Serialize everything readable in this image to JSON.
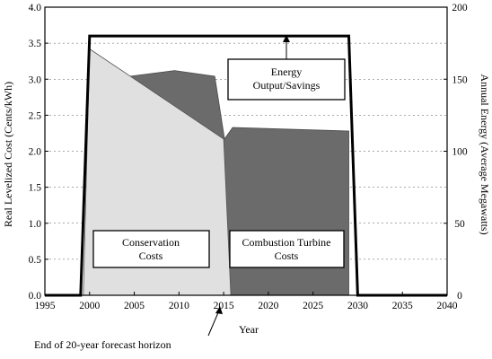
{
  "chart_data": {
    "type": "area",
    "xlabel": "Year",
    "ylabel_left": "Real Levelized Cost (Cents/kWh)",
    "ylabel_right": "Annual Energy (Average Megawatts)",
    "xlim": [
      1995,
      2040
    ],
    "ylim_left": [
      0,
      4.0
    ],
    "ylim_right": [
      0,
      200
    ],
    "x_ticks": [
      "1995",
      "2000",
      "2005",
      "2010",
      "2015",
      "2020",
      "2025",
      "2030",
      "2035",
      "2040"
    ],
    "y_ticks_left": [
      "0.0",
      "0.5",
      "1.0",
      "1.5",
      "2.0",
      "2.5",
      "3.0",
      "3.5",
      "4.0"
    ],
    "y_ticks_right": [
      "0",
      "50",
      "100",
      "150",
      "200"
    ],
    "grid": "horizontal dashed",
    "colors": {
      "conservation": "#e0e0e0",
      "combustion_turbine": "#6b6b6b",
      "energy_line": "#000000"
    },
    "series": [
      {
        "name": "Conservation Costs",
        "axis": "left",
        "points": [
          [
            1995,
            0.0
          ],
          [
            1999.3,
            0.0
          ],
          [
            2000,
            3.42
          ],
          [
            2015,
            2.17
          ],
          [
            2015.8,
            0.0
          ]
        ]
      },
      {
        "name": "Combustion Turbine Costs",
        "axis": "left",
        "points": [
          [
            2004.5,
            3.04
          ],
          [
            2009.5,
            3.12
          ],
          [
            2014,
            3.04
          ],
          [
            2015.1,
            2.17
          ],
          [
            2016,
            2.33
          ],
          [
            2029,
            2.28
          ],
          [
            2029,
            0.0
          ],
          [
            2015.8,
            0.0
          ]
        ]
      },
      {
        "name": "Energy Output/Savings",
        "axis": "right",
        "points": [
          [
            1995,
            0
          ],
          [
            1999,
            0
          ],
          [
            2000,
            180
          ],
          [
            2029,
            180
          ],
          [
            2030,
            0
          ],
          [
            2040,
            0
          ]
        ]
      }
    ],
    "annotations": {
      "energy_box": [
        "Energy",
        "Output/Savings"
      ],
      "conservation_box": [
        "Conservation",
        "Costs"
      ],
      "turbine_box": [
        "Combustion Turbine",
        "Costs"
      ],
      "horizon_note": "End of 20-year forecast horizon"
    }
  }
}
